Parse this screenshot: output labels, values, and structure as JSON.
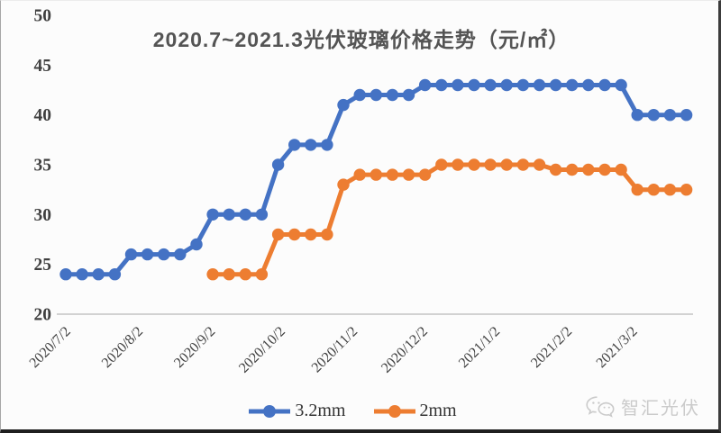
{
  "page": {
    "background": "#fcfcfc"
  },
  "colors": {
    "series_3_2mm": "#4472C4",
    "series_2mm": "#ED7D31",
    "title_text": "#545454",
    "axis_text": "#3f3f3f",
    "axis_line": "#c3c3c3",
    "legend_text": "#333333",
    "watermark": "#cbcbcb"
  },
  "watermark": {
    "label": "智汇光伏",
    "icon": "wechat-icon"
  },
  "chart_data": {
    "type": "line",
    "title": "2020.7~2021.3光伏玻璃价格走势（元/㎡）",
    "xlabel": "",
    "ylabel": "",
    "ylim": [
      20,
      50
    ],
    "y_ticks": [
      20,
      25,
      30,
      35,
      40,
      45,
      50
    ],
    "grid": false,
    "legend_position": "bottom",
    "x_unit": "weeks since 2020/7/2",
    "x_tick_labels": [
      "2020/7/2",
      "2020/8/2",
      "2020/9/2",
      "2020/10/2",
      "2020/11/2",
      "2020/12/2",
      "2021/1/2",
      "2021/2/2",
      "2021/3/2"
    ],
    "x_tick_weeks": [
      0,
      4.43,
      8.86,
      13.14,
      17.57,
      21.86,
      26.29,
      30.71,
      34.71
    ],
    "series": [
      {
        "name": "3.2mm",
        "color": "#4472C4",
        "start_week": 0,
        "values": [
          24,
          24,
          24,
          24,
          26,
          26,
          26,
          26,
          27,
          30,
          30,
          30,
          30,
          35,
          37,
          37,
          37,
          41,
          42,
          42,
          42,
          42,
          43,
          43,
          43,
          43,
          43,
          43,
          43,
          43,
          43,
          43,
          43,
          43,
          43,
          40,
          40,
          40,
          40
        ]
      },
      {
        "name": "2mm",
        "color": "#ED7D31",
        "start_week": 9,
        "values": [
          24,
          24,
          24,
          24,
          28,
          28,
          28,
          28,
          33,
          34,
          34,
          34,
          34,
          34,
          35,
          35,
          35,
          35,
          35,
          35,
          35,
          34.5,
          34.5,
          34.5,
          34.5,
          34.5,
          32.5,
          32.5,
          32.5,
          32.5
        ]
      }
    ]
  }
}
